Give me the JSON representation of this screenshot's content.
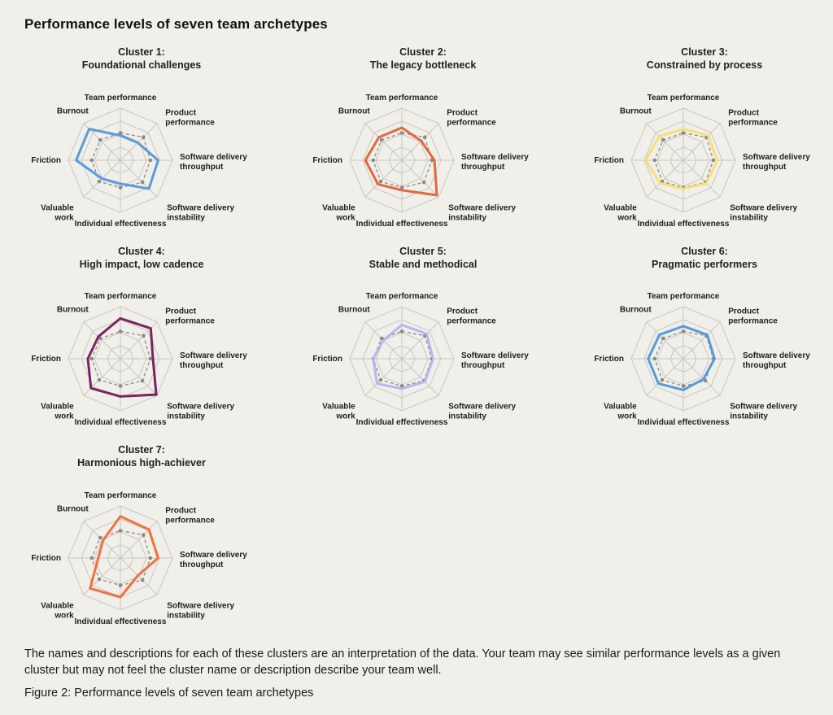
{
  "page": {
    "title": "Performance levels of seven team archetypes",
    "footnote": "The names and descriptions for each of these clusters are an interpretation of the data. Your team may see similar performance levels as a given cluster but may not feel the cluster name or description describe your team well.",
    "caption": "Figure 2: Performance levels of seven team archetypes"
  },
  "chart_data": {
    "type": "radar",
    "charts_per_row": 3,
    "scale_max": 4,
    "grid_rings": 4,
    "legend": "none",
    "axes": [
      "Team performance",
      "Product performance",
      "Software delivery throughput",
      "Software delivery instability",
      "Individual effectiveness",
      "Valuable work",
      "Friction",
      "Burnout"
    ],
    "axis_label_lines": [
      [
        "Team performance"
      ],
      [
        "Product",
        "performance"
      ],
      [
        "Software delivery",
        "throughput"
      ],
      [
        "Software delivery",
        "instability"
      ],
      [
        "Individual effectiveness"
      ],
      [
        "Valuable",
        "work"
      ],
      [
        "Friction"
      ],
      [
        "Burnout"
      ]
    ],
    "reference_series": {
      "style": "dashed-with-dot-markers",
      "color": "#8D8B86",
      "values": [
        2.1,
        2.5,
        2.3,
        2.4,
        2.1,
        2.3,
        2.2,
        2.2
      ]
    },
    "clusters": [
      {
        "title_line1": "Cluster 1:",
        "title_line2": "Foundational challenges",
        "color": "#5B9BDC",
        "values": [
          1.9,
          1.9,
          2.9,
          3.1,
          1.8,
          2.0,
          3.4,
          3.4
        ]
      },
      {
        "title_line1": "Cluster 2:",
        "title_line2": "The legacy bottleneck",
        "color": "#E4673E",
        "values": [
          2.5,
          2.1,
          2.5,
          3.8,
          2.3,
          2.6,
          2.8,
          2.5
        ]
      },
      {
        "title_line1": "Cluster 3:",
        "title_line2": "Constrained by process",
        "color": "#F5E173",
        "values": [
          2.4,
          2.7,
          2.6,
          2.5,
          2.2,
          2.5,
          2.9,
          2.6
        ]
      },
      {
        "title_line1": "Cluster 4:",
        "title_line2": "High impact, low cadence",
        "color": "#7D2362",
        "values": [
          3.1,
          3.3,
          2.5,
          3.9,
          2.9,
          3.2,
          2.5,
          2.4
        ]
      },
      {
        "title_line1": "Cluster 5:",
        "title_line2": "Stable and methodical",
        "color": "#B9B5F1",
        "values": [
          2.6,
          2.7,
          2.4,
          2.5,
          2.3,
          2.7,
          2.2,
          2.0
        ]
      },
      {
        "title_line1": "Cluster 6:",
        "title_line2": "Pragmatic performers",
        "color": "#569ADF",
        "values": [
          2.5,
          2.6,
          2.4,
          2.2,
          2.4,
          2.7,
          2.7,
          2.6
        ]
      },
      {
        "title_line1": "Cluster 7:",
        "title_line2": "Harmonious high-achiever",
        "color": "#F2703B",
        "values": [
          3.2,
          3.1,
          2.9,
          1.9,
          3.0,
          3.3,
          1.7,
          1.9
        ]
      }
    ],
    "colors": {
      "grid": "#C9C7C0",
      "reference": "#8D8B86",
      "background": "#F0EFE9",
      "label_text": "#202124"
    }
  }
}
